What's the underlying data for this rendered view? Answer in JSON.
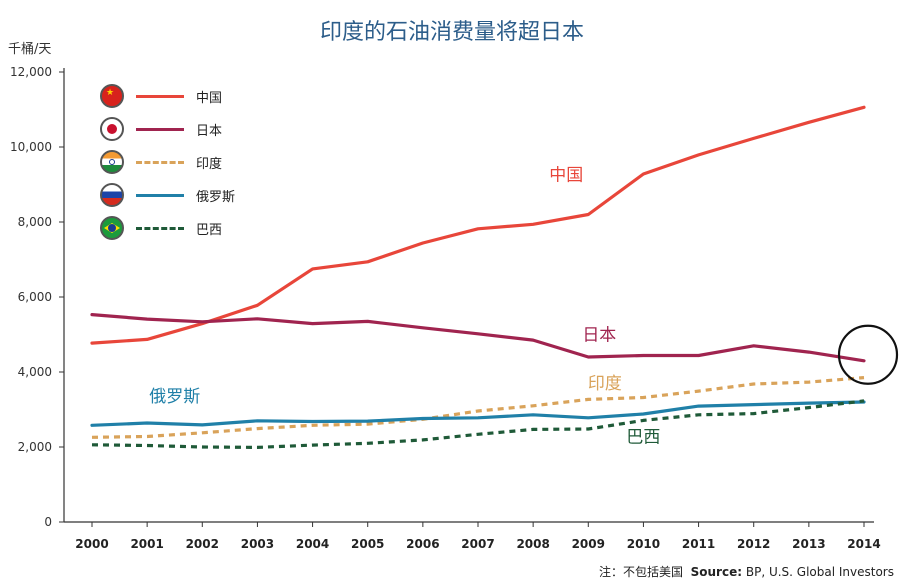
{
  "title": "印度的石油消费量将超日本",
  "y_unit": "千桶/天",
  "note": {
    "prefix": "注：不包括美国",
    "source_label": "Source:",
    "source_text": "BP, U.S. Global Investors"
  },
  "colors": {
    "china": "#e8463a",
    "japan": "#a0244f",
    "india": "#d9a35a",
    "russia": "#2080a8",
    "brazil": "#1f5a38"
  },
  "chart_data": {
    "type": "line",
    "title": "印度的石油消费量将超日本",
    "xlabel": "",
    "ylabel": "千桶/天",
    "ylim": [
      0,
      12000
    ],
    "yticks": [
      0,
      2000,
      4000,
      6000,
      8000,
      10000,
      12000
    ],
    "ytick_labels": [
      "0",
      "2,000",
      "4,000",
      "6,000",
      "8,000",
      "10,000",
      "12,000"
    ],
    "x": [
      "2000",
      "2001",
      "2002",
      "2003",
      "2004",
      "2005",
      "2006",
      "2007",
      "2008",
      "2009",
      "2010",
      "2011",
      "2012",
      "2013",
      "2014"
    ],
    "grid": false,
    "legend_position": "top-left",
    "series": [
      {
        "key": "china",
        "name": "中国",
        "style": "solid",
        "annotation": "中国",
        "values": [
          4770,
          4870,
          5290,
          5780,
          6750,
          6940,
          7440,
          7820,
          7940,
          8200,
          9280,
          9790,
          10230,
          10660,
          11060
        ]
      },
      {
        "key": "japan",
        "name": "日本",
        "style": "solid",
        "annotation": "日本",
        "values": [
          5530,
          5410,
          5340,
          5420,
          5290,
          5350,
          5180,
          5020,
          4850,
          4400,
          4440,
          4440,
          4700,
          4530,
          4300
        ]
      },
      {
        "key": "india",
        "name": "印度",
        "style": "dashed",
        "annotation": "印度",
        "values": [
          2260,
          2280,
          2380,
          2490,
          2580,
          2610,
          2740,
          2960,
          3100,
          3270,
          3320,
          3490,
          3680,
          3730,
          3850
        ]
      },
      {
        "key": "russia",
        "name": "俄罗斯",
        "style": "solid",
        "annotation": "俄罗斯",
        "values": [
          2580,
          2640,
          2590,
          2700,
          2680,
          2690,
          2760,
          2780,
          2860,
          2780,
          2880,
          3090,
          3130,
          3170,
          3200
        ]
      },
      {
        "key": "brazil",
        "name": "巴西",
        "style": "dashed",
        "annotation": "巴西",
        "values": [
          2060,
          2040,
          2000,
          1990,
          2050,
          2100,
          2190,
          2340,
          2470,
          2480,
          2710,
          2860,
          2890,
          3050,
          3230
        ]
      }
    ]
  },
  "legend": [
    {
      "key": "china",
      "label": "中国"
    },
    {
      "key": "japan",
      "label": "日本"
    },
    {
      "key": "india",
      "label": "印度"
    },
    {
      "key": "russia",
      "label": "俄罗斯"
    },
    {
      "key": "brazil",
      "label": "巴西"
    }
  ]
}
